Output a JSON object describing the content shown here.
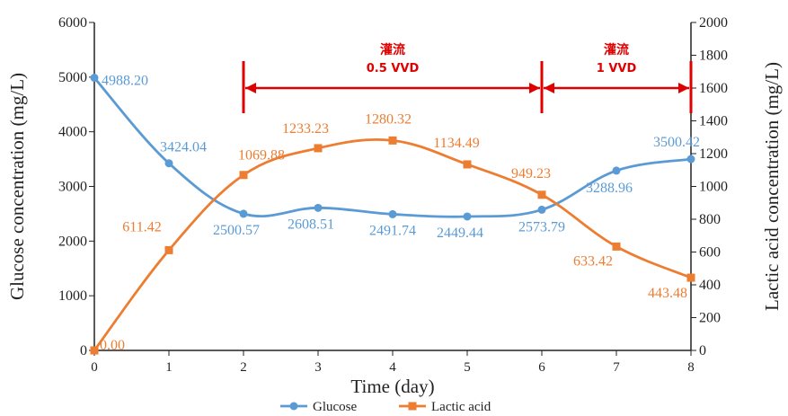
{
  "chart_data": {
    "type": "line",
    "xlabel": "Time (day)",
    "ylabel_left": "Glucose concentration (mg/L)",
    "ylabel_right": "Lactic acid concentration (mg/L)",
    "x": [
      0,
      1,
      2,
      3,
      4,
      5,
      6,
      7,
      8
    ],
    "x_ticks": [
      "0",
      "1",
      "2",
      "3",
      "4",
      "5",
      "6",
      "7",
      "8"
    ],
    "y_left_lim": [
      0,
      6000
    ],
    "y_left_ticks": [
      "0",
      "1000",
      "2000",
      "3000",
      "4000",
      "5000",
      "6000"
    ],
    "y_right_lim": [
      0,
      2000
    ],
    "y_right_ticks": [
      "0",
      "200",
      "400",
      "600",
      "800",
      "1000",
      "1200",
      "1400",
      "1600",
      "1800",
      "2000"
    ],
    "grid": false,
    "legend_position": "bottom",
    "series": [
      {
        "name": "Glucose",
        "axis": "left",
        "color": "#5b9bd5",
        "marker": "circle",
        "values": [
          4988.2,
          3424.04,
          2500.57,
          2608.51,
          2491.74,
          2449.44,
          2573.79,
          3288.96,
          3500.42
        ],
        "labels": [
          "4988.20",
          "3424.04",
          "2500.57",
          "2608.51",
          "2491.74",
          "2449.44",
          "2573.79",
          "3288.96",
          "3500.42"
        ]
      },
      {
        "name": "Lactic acid",
        "axis": "right",
        "color": "#ed7d31",
        "marker": "square",
        "values": [
          0.0,
          611.42,
          1069.88,
          1233.23,
          1280.32,
          1134.49,
          949.23,
          633.42,
          443.48
        ],
        "labels": [
          "0.00",
          "611.42",
          "1069.88",
          "1233.23",
          "1280.32",
          "1134.49",
          "949.23",
          "633.42",
          "443.48"
        ]
      }
    ],
    "annotations": [
      {
        "title": "灌流",
        "subtitle": "0.5 VVD",
        "x_start": 2,
        "x_end": 6
      },
      {
        "title": "灌流",
        "subtitle": "1 VVD",
        "x_start": 6,
        "x_end": 8
      }
    ]
  }
}
